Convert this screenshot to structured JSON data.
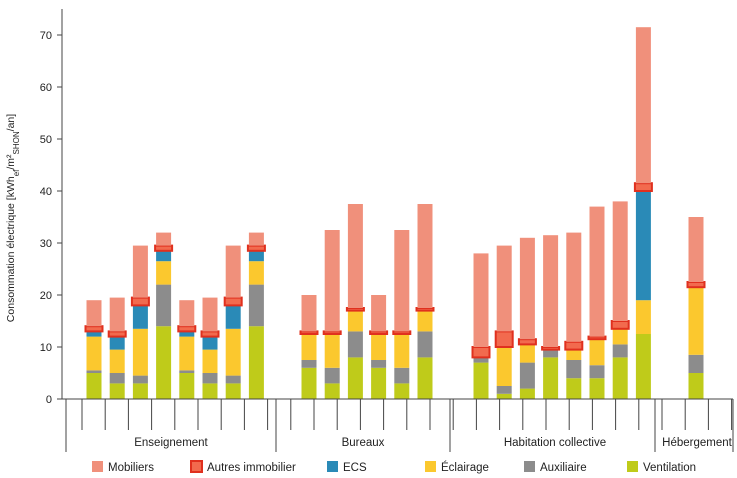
{
  "chart_data": {
    "type": "bar",
    "stacked": true,
    "ylabel": "Consommation électrique  [kWh",
    "ylabel_sub1": "ef",
    "ylabel_mid": "/m²",
    "ylabel_sub2": "SHON",
    "ylabel_end": "/an]",
    "ylim": [
      0,
      75
    ],
    "yticks": [
      0,
      10,
      20,
      30,
      40,
      50,
      60,
      70
    ],
    "grid": false,
    "legend_position": "bottom",
    "groups": [
      {
        "label": "Enseignement",
        "bars": 8
      },
      {
        "label": "Bureaux",
        "bars": 6
      },
      {
        "label": "Habitation collective",
        "bars": 8
      },
      {
        "label": "Hébergement",
        "bars": 1
      }
    ],
    "series": [
      {
        "name": "Ventilation",
        "color": "#bfcb1a",
        "values": [
          5.0,
          3.0,
          3.0,
          14.0,
          5.0,
          3.0,
          3.0,
          14.0,
          6.0,
          3.0,
          8.0,
          6.0,
          3.0,
          8.0,
          7.0,
          1.0,
          2.0,
          8.0,
          4.0,
          4.0,
          8.0,
          12.5,
          5.0
        ]
      },
      {
        "name": "Auxiliaire",
        "color": "#8c8c8c",
        "values": [
          0.5,
          2.0,
          1.5,
          8.0,
          0.5,
          2.0,
          1.5,
          8.0,
          1.5,
          3.0,
          5.0,
          1.5,
          3.0,
          5.0,
          1.0,
          1.5,
          5.0,
          1.5,
          3.5,
          2.5,
          2.5,
          0,
          3.5
        ]
      },
      {
        "name": "Éclairage",
        "color": "#fbc82e",
        "values": [
          6.5,
          4.5,
          9.0,
          4.5,
          6.5,
          4.5,
          9.0,
          4.5,
          5.0,
          6.5,
          4.0,
          5.0,
          6.5,
          4.0,
          0,
          7.5,
          3.5,
          0,
          2.0,
          5.0,
          3.0,
          6.5,
          13.0
        ]
      },
      {
        "name": "ECS",
        "color": "#2a8ab7",
        "values": [
          1.0,
          2.5,
          4.5,
          2.0,
          1.0,
          2.5,
          4.5,
          2.0,
          0,
          0,
          0,
          0,
          0,
          0,
          0,
          0,
          0,
          0,
          0,
          0,
          0,
          21.0,
          0
        ]
      },
      {
        "name": "Autres immobilier",
        "color": "#f26a4e",
        "values": [
          1.0,
          1.0,
          1.5,
          1.0,
          1.0,
          1.0,
          1.5,
          1.0,
          0.5,
          0.5,
          0.5,
          0.5,
          0.5,
          0.5,
          2.0,
          3.0,
          1.0,
          0.5,
          1.5,
          0.5,
          1.5,
          1.5,
          1.0
        ]
      },
      {
        "name": "Mobiliers",
        "color": "#f0907b",
        "values": [
          5.0,
          6.5,
          10.0,
          2.5,
          5.0,
          6.5,
          10.0,
          2.5,
          7.0,
          19.5,
          20.0,
          7.0,
          19.5,
          20.0,
          18.0,
          16.5,
          19.5,
          21.5,
          21.0,
          25.0,
          23.0,
          30.0,
          12.5
        ]
      }
    ]
  }
}
